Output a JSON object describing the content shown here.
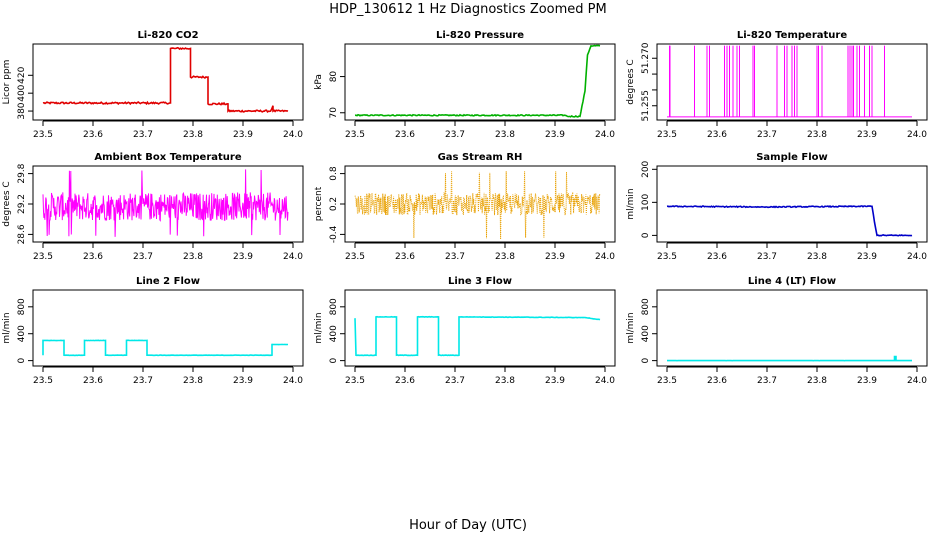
{
  "figure": {
    "title": "HDP_130612  1 Hz Diagnostics Zoomed PM",
    "xlabel": "Hour of Day (UTC)"
  },
  "chart_data": [
    {
      "type": "line",
      "title": "Li-820 CO2",
      "ylabel": "Licor ppm",
      "color": "#e00000",
      "xlim": [
        23.5,
        24.0
      ],
      "ylim": [
        370,
        455
      ],
      "xticks": [
        "23.5",
        "23.6",
        "23.7",
        "23.8",
        "23.9",
        "24.0"
      ],
      "yticks": [
        {
          "v": 380,
          "label": "380"
        },
        {
          "v": 400,
          "label": "400"
        },
        {
          "v": 420,
          "label": "420"
        }
      ],
      "noise": 1.0,
      "series": [
        {
          "x": [
            23.5,
            23.755,
            23.755,
            23.763,
            23.763,
            23.795,
            23.795,
            23.83,
            23.83,
            23.87,
            23.87,
            23.955,
            23.955,
            23.96,
            23.96,
            23.99
          ],
          "y": [
            389,
            389,
            450,
            450,
            450,
            450,
            418,
            418,
            388,
            388,
            380,
            380,
            380,
            386,
            380,
            380
          ]
        }
      ]
    },
    {
      "type": "line",
      "title": "Li-820 Pressure",
      "ylabel": "kPa",
      "color": "#00b000",
      "xlim": [
        23.5,
        24.0
      ],
      "ylim": [
        68,
        89
      ],
      "xticks": [
        "23.5",
        "23.6",
        "23.7",
        "23.8",
        "23.9",
        "24.0"
      ],
      "yticks": [
        {
          "v": 70,
          "label": "70"
        },
        {
          "v": 80,
          "label": "80"
        }
      ],
      "noise": 0.15,
      "series": [
        {
          "x": [
            23.5,
            23.92,
            23.925,
            23.95,
            23.96,
            23.965,
            23.972,
            23.99
          ],
          "y": [
            69.3,
            69.3,
            69.0,
            69.0,
            76.0,
            86.0,
            88.5,
            88.5
          ]
        }
      ]
    },
    {
      "type": "spikes",
      "title": "Li-820 Temperature",
      "ylabel": "degrees C",
      "color": "#ff00ff",
      "xlim": [
        23.5,
        24.0
      ],
      "ylim": [
        51.2505,
        51.2745
      ],
      "xticks": [
        "23.5",
        "23.6",
        "23.7",
        "23.8",
        "23.9",
        "24.0"
      ],
      "yticks": [
        {
          "v": 51.255,
          "label": "51.255"
        },
        {
          "v": 51.26,
          "label": ""
        },
        {
          "v": 51.265,
          "label": ""
        },
        {
          "v": 51.27,
          "label": "51.270"
        }
      ],
      "base": 51.2515,
      "peak": 51.274,
      "spikes": [
        23.505,
        23.506,
        23.555,
        23.58,
        23.585,
        23.615,
        23.62,
        23.625,
        23.632,
        23.64,
        23.645,
        23.672,
        23.675,
        23.72,
        23.735,
        23.74,
        23.75,
        23.755,
        23.76,
        23.8,
        23.803,
        23.81,
        23.862,
        23.866,
        23.87,
        23.873,
        23.88,
        23.885,
        23.895,
        23.905,
        23.91,
        23.935
      ]
    },
    {
      "type": "noise",
      "title": "Ambient Box Temperature",
      "ylabel": "degrees C",
      "color": "#ff00ff",
      "xlim": [
        23.5,
        24.0
      ],
      "ylim": [
        28.45,
        29.95
      ],
      "xticks": [
        "23.5",
        "23.6",
        "23.7",
        "23.8",
        "23.9",
        "24.0"
      ],
      "yticks": [
        {
          "v": 28.6,
          "label": "28.6"
        },
        {
          "v": 29.2,
          "label": "29.2"
        },
        {
          "v": 29.8,
          "label": "29.8"
        }
      ],
      "center": 29.15,
      "amplitude": 0.28,
      "outlier_max": 29.9,
      "outlier_min": 28.55
    },
    {
      "type": "noise",
      "title": "Gas Stream RH",
      "ylabel": "percent",
      "color": "#e8a000",
      "xlim": [
        23.5,
        24.0
      ],
      "ylim": [
        -0.55,
        0.95
      ],
      "xticks": [
        "23.5",
        "23.6",
        "23.7",
        "23.8",
        "23.9",
        "24.0"
      ],
      "yticks": [
        {
          "v": -0.4,
          "label": "-0.4"
        },
        {
          "v": 0.2,
          "label": "0.2"
        },
        {
          "v": 0.8,
          "label": "0.8"
        }
      ],
      "center": 0.2,
      "amplitude": 0.22,
      "outlier_max": 0.85,
      "outlier_min": -0.5,
      "dotted": true
    },
    {
      "type": "line",
      "title": "Sample Flow",
      "ylabel": "ml/min",
      "color": "#0000c8",
      "xlim": [
        23.5,
        24.0
      ],
      "ylim": [
        -20,
        210
      ],
      "xticks": [
        "23.5",
        "23.6",
        "23.7",
        "23.8",
        "23.9",
        "24.0"
      ],
      "yticks": [
        {
          "v": 0,
          "label": "0"
        },
        {
          "v": 100,
          "label": "100"
        },
        {
          "v": 200,
          "label": "200"
        }
      ],
      "noise": 1.5,
      "series": [
        {
          "x": [
            23.5,
            23.7,
            23.91,
            23.915,
            23.92,
            23.99
          ],
          "y": [
            88,
            86,
            88,
            40,
            0,
            0
          ]
        }
      ]
    },
    {
      "type": "line",
      "title": "Line 2 Flow",
      "ylabel": "ml/min",
      "color": "#00e8e8",
      "xlim": [
        23.5,
        24.0
      ],
      "ylim": [
        -80,
        1050
      ],
      "xticks": [
        "23.5",
        "23.6",
        "23.7",
        "23.8",
        "23.9",
        "24.0"
      ],
      "yticks": [
        {
          "v": 0,
          "label": "0"
        },
        {
          "v": 400,
          "label": "400"
        },
        {
          "v": 800,
          "label": "800"
        }
      ],
      "noise": 2,
      "series": [
        {
          "x": [
            23.5,
            23.5,
            23.542,
            23.542,
            23.583,
            23.583,
            23.625,
            23.625,
            23.667,
            23.667,
            23.708,
            23.708,
            23.958,
            23.958,
            23.99
          ],
          "y": [
            80,
            300,
            300,
            80,
            80,
            300,
            300,
            80,
            80,
            300,
            300,
            80,
            80,
            240,
            240
          ]
        }
      ]
    },
    {
      "type": "line",
      "title": "Line 3 Flow",
      "ylabel": "ml/min",
      "color": "#00e8e8",
      "xlim": [
        23.5,
        24.0
      ],
      "ylim": [
        -80,
        1050
      ],
      "xticks": [
        "23.5",
        "23.6",
        "23.7",
        "23.8",
        "23.9",
        "24.0"
      ],
      "yticks": [
        {
          "v": 0,
          "label": "0"
        },
        {
          "v": 400,
          "label": "400"
        },
        {
          "v": 800,
          "label": "800"
        }
      ],
      "noise": 3,
      "series": [
        {
          "x": [
            23.5,
            23.5,
            23.502,
            23.502,
            23.542,
            23.542,
            23.583,
            23.583,
            23.625,
            23.625,
            23.667,
            23.667,
            23.708,
            23.708,
            23.96,
            23.99
          ],
          "y": [
            630,
            630,
            80,
            80,
            80,
            650,
            650,
            80,
            80,
            650,
            650,
            80,
            80,
            650,
            640,
            610
          ]
        }
      ]
    },
    {
      "type": "line",
      "title": "Line 4 (LT) Flow",
      "ylabel": "ml/min",
      "color": "#00e8e8",
      "xlim": [
        23.5,
        24.0
      ],
      "ylim": [
        -80,
        1050
      ],
      "xticks": [
        "23.5",
        "23.6",
        "23.7",
        "23.8",
        "23.9",
        "24.0"
      ],
      "yticks": [
        {
          "v": 0,
          "label": "0"
        },
        {
          "v": 400,
          "label": "400"
        },
        {
          "v": 800,
          "label": "800"
        }
      ],
      "noise": 0.5,
      "series": [
        {
          "x": [
            23.5,
            23.955,
            23.955,
            23.958,
            23.958,
            23.99
          ],
          "y": [
            0,
            0,
            60,
            60,
            0,
            0
          ]
        }
      ]
    }
  ]
}
